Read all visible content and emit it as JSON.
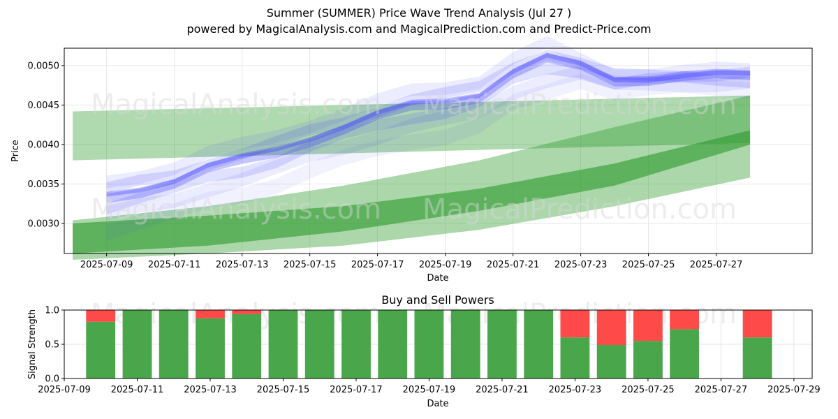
{
  "header": {
    "title": "Summer (SUMMER) Price Wave Trend Analysis (Jul 27 )",
    "subtitle": "powered by MagicalAnalysis.com and MagicalPrediction.com and Predict-Price.com"
  },
  "watermarks": [
    "MagicalAnalysis.com",
    "MagicalPrediction.com"
  ],
  "colors": {
    "blue_band": "#4040ff",
    "green_band": "#2e9b2e",
    "buy": "#4aa64a",
    "sell": "#ff4a4a",
    "grid": "#e6e6e6"
  },
  "chart_data": [
    {
      "type": "area",
      "title": "",
      "xlabel": "Date",
      "ylabel": "Price",
      "xlim": [
        "2025-07-07T18:00",
        "2025-07-29T20:00"
      ],
      "ylim": [
        0.00262,
        0.00522
      ],
      "xticks": [
        "2025-07-09",
        "2025-07-11",
        "2025-07-13",
        "2025-07-15",
        "2025-07-17",
        "2025-07-19",
        "2025-07-21",
        "2025-07-23",
        "2025-07-25",
        "2025-07-27"
      ],
      "yticks": [
        "0.0030",
        "0.0035",
        "0.0040",
        "0.0045",
        "0.0050"
      ],
      "grid": true,
      "blue_wave_center": {
        "x": [
          "2025-07-09",
          "2025-07-10",
          "2025-07-11",
          "2025-07-12",
          "2025-07-13",
          "2025-07-14",
          "2025-07-15",
          "2025-07-16",
          "2025-07-17",
          "2025-07-18",
          "2025-07-19",
          "2025-07-20",
          "2025-07-21",
          "2025-07-22",
          "2025-07-23",
          "2025-07-24",
          "2025-07-25",
          "2025-07-26",
          "2025-07-27",
          "2025-07-28"
        ],
        "y": [
          0.00332,
          0.00342,
          0.00352,
          0.00368,
          0.00378,
          0.0039,
          0.00406,
          0.0042,
          0.00434,
          0.00446,
          0.00452,
          0.00462,
          0.0049,
          0.00506,
          0.00498,
          0.00482,
          0.00484,
          0.00486,
          0.00486,
          0.00486
        ]
      },
      "green_bands": [
        {
          "x": [
            "2025-07-08",
            "2025-07-28"
          ],
          "upper": [
            0.00442,
            0.00462
          ],
          "lower": [
            0.0038,
            0.00402
          ]
        },
        {
          "x": [
            "2025-07-08",
            "2025-07-12",
            "2025-07-16",
            "2025-07-20",
            "2025-07-24",
            "2025-07-28"
          ],
          "upper": [
            0.00304,
            0.00322,
            0.00348,
            0.0038,
            0.00422,
            0.00462
          ],
          "lower": [
            0.00254,
            0.00262,
            0.00272,
            0.00292,
            0.00322,
            0.00358
          ]
        },
        {
          "x": [
            "2025-07-08",
            "2025-07-12",
            "2025-07-16",
            "2025-07-20",
            "2025-07-24",
            "2025-07-28"
          ],
          "upper": [
            0.003,
            0.0031,
            0.00322,
            0.00344,
            0.00376,
            0.00418
          ],
          "lower": [
            0.00262,
            0.00272,
            0.0029,
            0.00316,
            0.00348,
            0.004
          ]
        }
      ]
    },
    {
      "type": "bar",
      "title": "Buy and Sell Powers",
      "xlabel": "Date",
      "ylabel": "Signal Strength",
      "xlim": [
        "2025-07-09T00:00",
        "2025-07-29T12:00"
      ],
      "ylim": [
        0,
        1
      ],
      "xticks": [
        "2025-07-09",
        "2025-07-11",
        "2025-07-13",
        "2025-07-15",
        "2025-07-17",
        "2025-07-19",
        "2025-07-21",
        "2025-07-23",
        "2025-07-25",
        "2025-07-27",
        "2025-07-29"
      ],
      "yticks": [
        "0.0",
        "0.5",
        "1.0"
      ],
      "grid": true,
      "categories": [
        "2025-07-10",
        "2025-07-11",
        "2025-07-12",
        "2025-07-13",
        "2025-07-14",
        "2025-07-15",
        "2025-07-16",
        "2025-07-17",
        "2025-07-18",
        "2025-07-19",
        "2025-07-20",
        "2025-07-21",
        "2025-07-22",
        "2025-07-23",
        "2025-07-24",
        "2025-07-25",
        "2025-07-26",
        "2025-07-28"
      ],
      "series": [
        {
          "values": [
            0.83,
            1.0,
            1.0,
            0.88,
            0.94,
            1.0,
            1.0,
            1.0,
            1.0,
            1.0,
            1.0,
            1.0,
            1.0,
            0.6,
            0.49,
            0.55,
            0.72,
            0.6
          ]
        },
        {
          "values": [
            0.17,
            0.0,
            0.0,
            0.12,
            0.06,
            0.0,
            0.0,
            0.0,
            0.0,
            0.0,
            0.0,
            0.0,
            0.0,
            0.4,
            0.51,
            0.45,
            0.28,
            0.4
          ]
        }
      ]
    }
  ]
}
